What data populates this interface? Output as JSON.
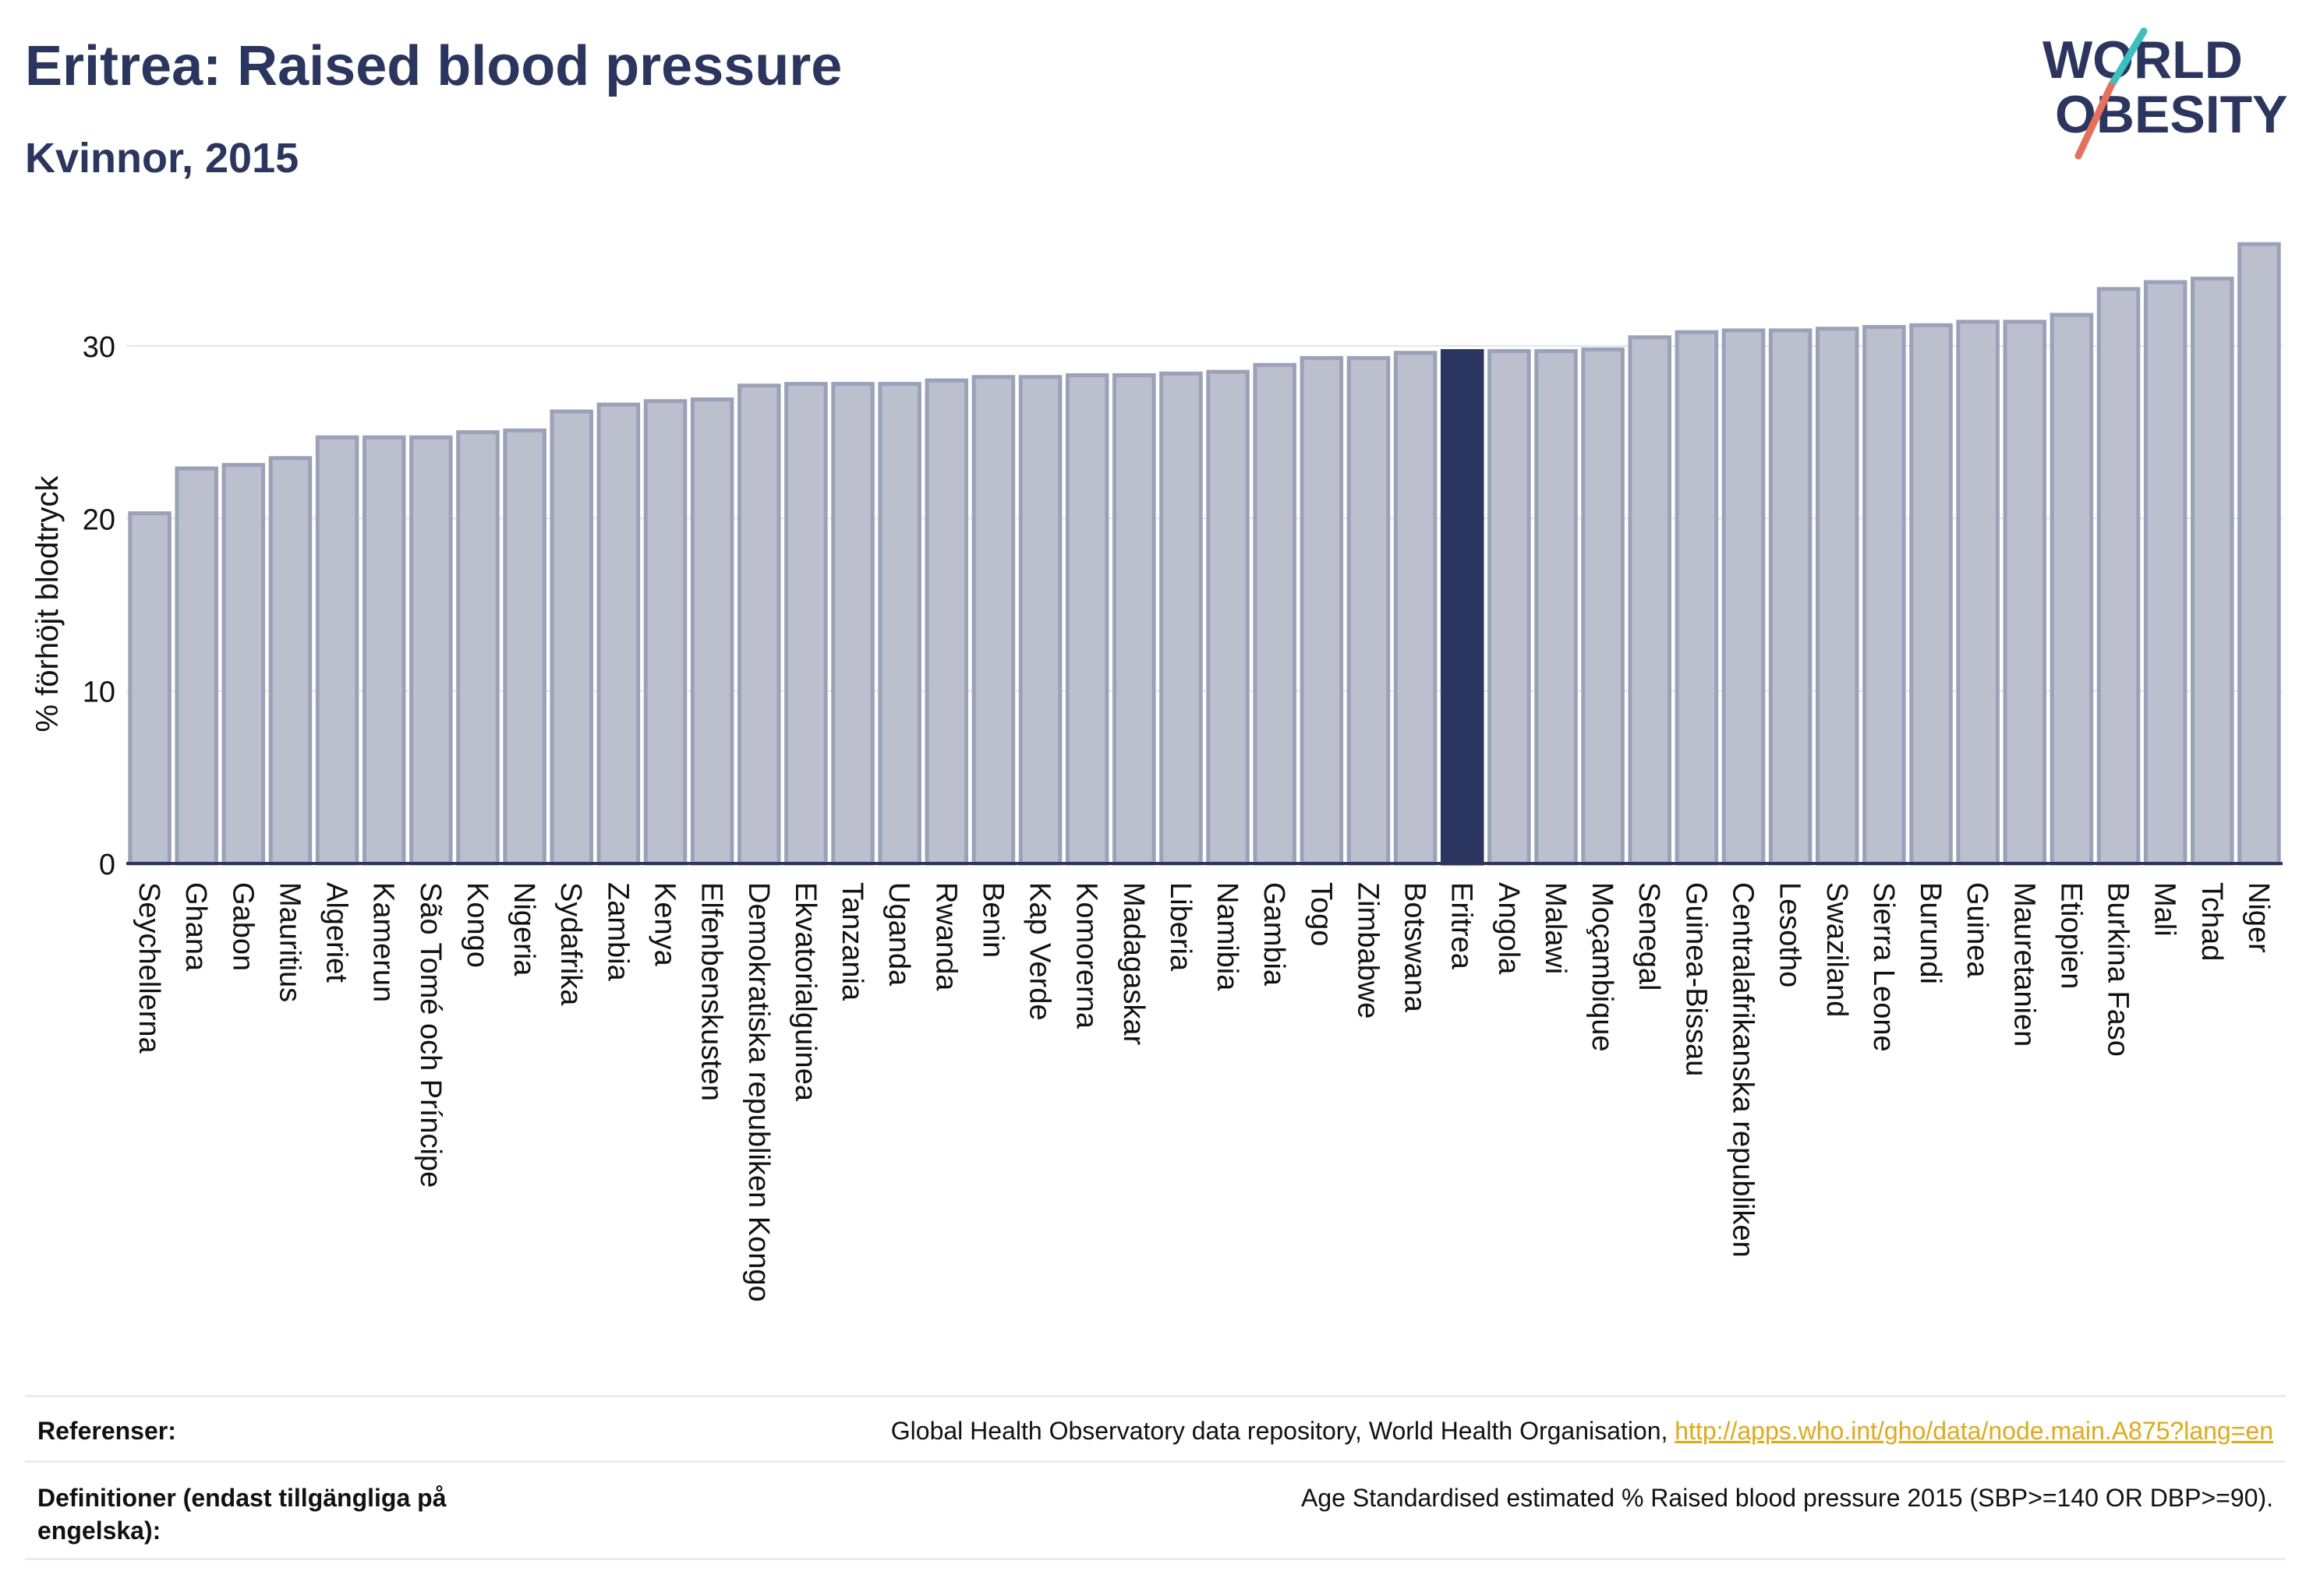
{
  "header": {
    "title": "Eritrea: Raised blood pressure",
    "subtitle": "Kvinnor, 2015"
  },
  "logo": {
    "line1": "WORLD",
    "line2": "OBESITY",
    "text_color": "#2a3560",
    "slash_teal": "#3bbfc1",
    "slash_coral": "#e8705a"
  },
  "colors": {
    "bar": "#bcc0ce",
    "bar_border": "#9ba1b8",
    "highlight": "#2a3560",
    "grid": "#e4e4ea",
    "axis": "#2a3560"
  },
  "chart_data": {
    "type": "bar",
    "ylabel": "% förhöjt blodtryck",
    "ylim": [
      0,
      36.5
    ],
    "yticks": [
      0,
      10,
      20,
      30
    ],
    "grid": true,
    "highlight": "Eritrea",
    "categories": [
      "Seychellerna",
      "Ghana",
      "Gabon",
      "Mauritius",
      "Algeriet",
      "Kamerun",
      "São Tomé och Príncipe",
      "Kongo",
      "Nigeria",
      "Sydafrika",
      "Zambia",
      "Kenya",
      "Elfenbenskusten",
      "Demokratiska republiken Kongo",
      "Ekvatorialguinea",
      "Tanzania",
      "Uganda",
      "Rwanda",
      "Benin",
      "Kap Verde",
      "Komorerna",
      "Madagaskar",
      "Liberia",
      "Namibia",
      "Gambia",
      "Togo",
      "Zimbabwe",
      "Botswana",
      "Eritrea",
      "Angola",
      "Malawi",
      "Moçambique",
      "Senegal",
      "Guinea-Bissau",
      "Centralafrikanska republiken",
      "Lesotho",
      "Swaziland",
      "Sierra Leone",
      "Burundi",
      "Guinea",
      "Mauretanien",
      "Etiopien",
      "Burkina Faso",
      "Mali",
      "Tchad",
      "Niger"
    ],
    "values": [
      20.3,
      22.9,
      23.1,
      23.5,
      24.7,
      24.7,
      24.7,
      25.0,
      25.1,
      26.2,
      26.6,
      26.8,
      26.9,
      27.7,
      27.8,
      27.8,
      27.8,
      28.0,
      28.2,
      28.2,
      28.3,
      28.3,
      28.4,
      28.5,
      28.9,
      29.3,
      29.3,
      29.6,
      29.7,
      29.7,
      29.7,
      29.8,
      30.5,
      30.8,
      30.9,
      30.9,
      31.0,
      31.1,
      31.2,
      31.4,
      31.4,
      31.8,
      33.3,
      33.7,
      33.9,
      35.9
    ]
  },
  "footer": {
    "references_label": "Referenser:",
    "references_text": "Global Health Observatory data repository, World Health Organisation, ",
    "references_link": "http://apps.who.int/gho/data/node.main.A875?lang=en",
    "definitions_label": "Definitioner (endast tillgängliga på engelska):",
    "definitions_text": "Age Standardised estimated % Raised blood pressure 2015 (SBP>=140 OR DBP>=90)."
  }
}
